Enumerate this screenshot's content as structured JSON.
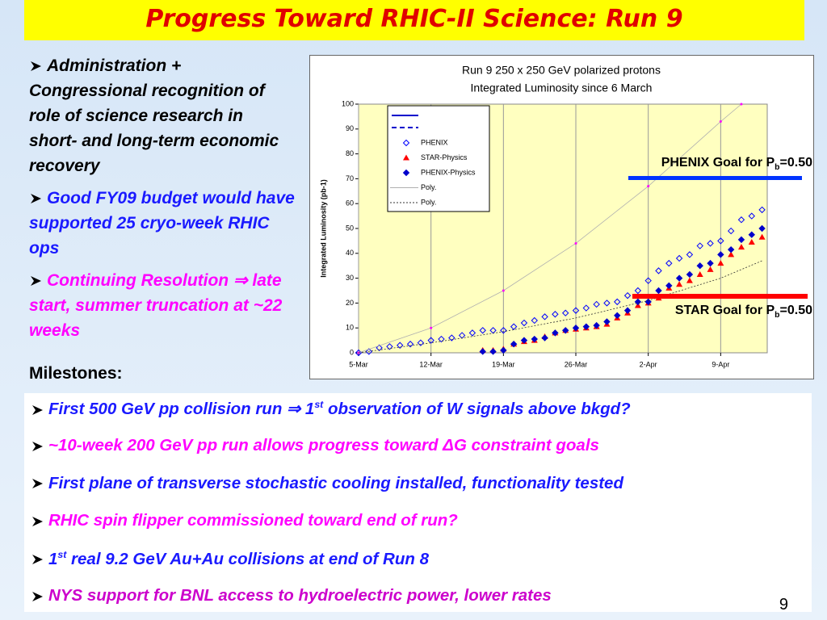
{
  "title": "Progress Toward RHIC-II Science:  Run 9",
  "left_bullets": [
    {
      "color": "#000000",
      "segments": [
        {
          "text": "Administration + Congressional recognition of role of science research in short- and long-term economic recovery"
        }
      ]
    },
    {
      "color": "#1a1aff",
      "segments": [
        {
          "text": "Good FY09 budget would have supported 25 cryo-week RHIC ops"
        }
      ]
    },
    {
      "color": "#ff00ff",
      "segments": [
        {
          "text": "Continuing Resolution "
        },
        {
          "text": "⇒ late start, summer truncation at ~22 weeks"
        }
      ]
    }
  ],
  "milestones_heading": "Milestones:",
  "milestones": [
    {
      "color": "#1a1aff",
      "segments": [
        {
          "text": "First 500 GeV pp collision run ⇒ 1"
        },
        {
          "text": "st",
          "sup": true
        },
        {
          "text": " observation of W signals above bkgd?"
        }
      ]
    },
    {
      "color": "#ff00ff",
      "segments": [
        {
          "text": "~10-week 200 GeV pp run allows progress toward ΔG constraint goals"
        }
      ]
    },
    {
      "color": "#1a1aff",
      "segments": [
        {
          "text": "First plane of transverse stochastic cooling installed, functionality tested"
        }
      ]
    },
    {
      "color": "#ff00ff",
      "segments": [
        {
          "text": "RHIC spin flipper commissioned toward end of run?"
        }
      ]
    },
    {
      "color": "#1a1aff",
      "segments": [
        {
          "text": "1"
        },
        {
          "text": "st",
          "sup": true
        },
        {
          "text": " real 9.2 GeV Au+Au collisions at end of Run 8"
        }
      ]
    },
    {
      "color": "#cc00cc",
      "segments": [
        {
          "text": "NYS support for BNL access to hydroelectric power, lower rates"
        }
      ]
    }
  ],
  "annotations": [
    {
      "color": "#0000ff",
      "segments": [
        {
          "text": "PHENIX Goal for P"
        },
        {
          "text": "b",
          "sub": true
        },
        {
          "text": "=0.50"
        }
      ]
    },
    {
      "color": "#ff0000",
      "segments": [
        {
          "text": "STAR Goal for P"
        },
        {
          "text": "b",
          "sub": true
        },
        {
          "text": "=0.50"
        }
      ]
    }
  ],
  "page_number": "9",
  "chart_data": {
    "type": "scatter",
    "title": [
      "Run 9 250 x 250 GeV polarized protons",
      "Integrated Luminosity since 6 March"
    ],
    "y_label": "Integrated Luminosity (pb-1)",
    "xlim": [
      0,
      39.5
    ],
    "ylim": [
      0,
      100
    ],
    "xticks": [
      {
        "value": 0,
        "label": "5-Mar"
      },
      {
        "value": 7,
        "label": "12-Mar"
      },
      {
        "value": 14,
        "label": "19-Mar"
      },
      {
        "value": 21,
        "label": "26-Mar"
      },
      {
        "value": 28,
        "label": "2-Apr"
      },
      {
        "value": 35,
        "label": "9-Apr"
      }
    ],
    "yticks": [
      0,
      10,
      20,
      30,
      40,
      50,
      60,
      70,
      80,
      90,
      100
    ],
    "grid": "x",
    "series": [
      {
        "name": "PHENIX",
        "marker": "diamond-open",
        "color": "#0000ff",
        "x": [
          0,
          1,
          2,
          3,
          4,
          5,
          6,
          7,
          8,
          9,
          10,
          11,
          12,
          13,
          14,
          15,
          16,
          17,
          18,
          19,
          20,
          21,
          22,
          23,
          24,
          25,
          26,
          27,
          28,
          29,
          30,
          31,
          32,
          33,
          34,
          35,
          36,
          37,
          38,
          39
        ],
        "values": [
          0,
          0.5,
          2,
          2.5,
          3,
          3.5,
          4,
          5,
          5.5,
          6,
          7,
          8,
          9,
          9,
          9,
          10.5,
          12,
          13,
          14.5,
          15.5,
          16,
          17,
          18,
          19.5,
          20,
          20.5,
          23,
          25,
          29,
          33,
          36,
          38,
          39.5,
          43,
          44,
          45,
          49,
          53.5,
          55,
          57.5
        ]
      },
      {
        "name": "STAR-Physics",
        "marker": "triangle",
        "color": "#ff0000",
        "x": [
          12,
          13,
          14,
          15,
          16,
          17,
          18,
          19,
          20,
          21,
          22,
          23,
          24,
          25,
          26,
          27,
          28,
          29,
          30,
          31,
          32,
          33,
          34,
          35,
          36,
          37,
          38,
          39
        ],
        "values": [
          1,
          1,
          1.5,
          3.5,
          4.5,
          5,
          6.5,
          8,
          9,
          9.5,
          10,
          10.5,
          11.5,
          14,
          16,
          19,
          20,
          22,
          26,
          27.5,
          29,
          31.5,
          33.5,
          36,
          39.5,
          42.5,
          44.5,
          46.5
        ]
      },
      {
        "name": "PHENIX-Physics",
        "marker": "diamond",
        "color": "#0000cc",
        "x": [
          12,
          13,
          14,
          15,
          16,
          17,
          18,
          19,
          20,
          21,
          22,
          23,
          24,
          25,
          26,
          27,
          28,
          29,
          30,
          31,
          32,
          33,
          34,
          35,
          36,
          37,
          38,
          39
        ],
        "values": [
          0.5,
          0.5,
          1,
          3.5,
          5,
          5.5,
          6,
          8,
          9,
          10,
          10.5,
          11,
          12.5,
          15,
          17,
          20.5,
          20.5,
          25,
          27,
          30,
          31.5,
          35,
          36,
          39.5,
          41.5,
          45.5,
          47.5,
          50
        ]
      },
      {
        "name": "Poly.",
        "line": "solid",
        "color": "#b0b0b0",
        "marker": "dot",
        "marker_color": "#ff00ff",
        "x": [
          0,
          7,
          14,
          21,
          28,
          35,
          37
        ],
        "values": [
          0,
          10,
          25,
          44,
          67,
          93,
          100
        ]
      },
      {
        "name": "Poly.",
        "line": "dotted",
        "color": "#333333",
        "x": [
          0,
          7,
          14,
          21,
          28,
          35,
          39
        ],
        "values": [
          0,
          4,
          8.5,
          14,
          21,
          30,
          37
        ]
      }
    ]
  }
}
